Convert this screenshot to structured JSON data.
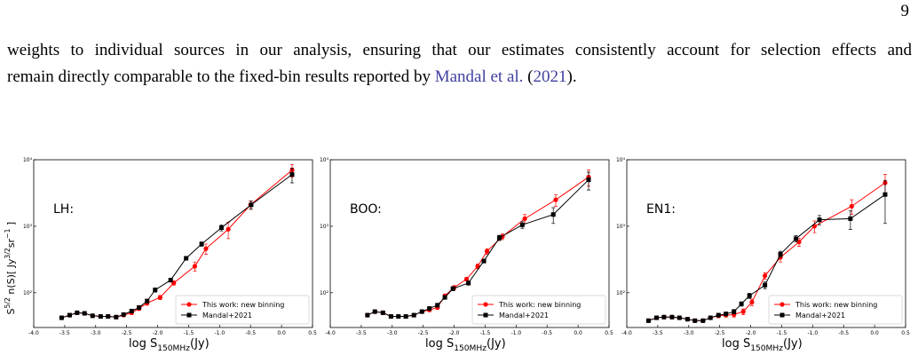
{
  "page_number": "9",
  "paragraph": {
    "line_1": "weights to individual sources in our analysis, ensuring that our estimates consistently account for selection effects and",
    "line_2": "remain directly comparable to the fixed-bin results reported by ",
    "cite_author": "Mandal et al.",
    "cite_open": " (",
    "cite_year": "2021",
    "cite_close": ")."
  },
  "chart_data": [
    {
      "type": "line",
      "panel_label": "LH:",
      "yscale": "log",
      "legend": "lower right",
      "grid": false,
      "xlim": [
        -4.0,
        0.5
      ],
      "xticks": [
        {
          "value": -4,
          "label": "-4.0"
        },
        -3.5,
        {
          "value": -3,
          "label": "-3.0"
        },
        -2.5,
        {
          "value": -2,
          "label": "-2.0"
        },
        -1.5,
        {
          "value": -1,
          "label": "-1.0"
        },
        -0.5,
        {
          "value": 0,
          "label": "0.0"
        },
        0.5
      ],
      "ylim": [
        30,
        10000
      ],
      "yticks": [
        {
          "value": 100,
          "label": "10²"
        },
        {
          "value": 1000,
          "label": "10³"
        },
        {
          "value": 10000,
          "label": "10⁴"
        }
      ],
      "xlabel": [
        {
          "text": "log S"
        },
        {
          "text": "150MHz",
          "sub": true
        },
        {
          "text": "(Jy)"
        }
      ],
      "ylabel": [
        {
          "text": "S"
        },
        {
          "text": "5/2",
          "sup": true
        },
        {
          "text": " n(S)[ Jy"
        },
        {
          "text": "3/2",
          "sup": true
        },
        {
          "text": "sr"
        },
        {
          "text": "−1",
          "sup": true
        },
        {
          "text": " ]"
        }
      ],
      "series": [
        {
          "name": "This work: new binning",
          "color": "#ff0000",
          "marker": "o",
          "x": [
            -3.55,
            -3.42,
            -3.3,
            -3.18,
            -3.05,
            -2.92,
            -2.8,
            -2.67,
            -2.55,
            -2.42,
            -2.3,
            -2.17,
            -1.96,
            -1.74,
            -1.4,
            -1.22,
            -0.86,
            -0.5,
            0.17
          ],
          "values": [
            42,
            46,
            50,
            49,
            45,
            44,
            44,
            43,
            46,
            50,
            58,
            70,
            85,
            140,
            250,
            460,
            900,
            2100,
            7000
          ],
          "errors": [
            2,
            2,
            2,
            2,
            2,
            2,
            2,
            2,
            2,
            3,
            4,
            5,
            6,
            10,
            40,
            80,
            250,
            300,
            1500
          ]
        },
        {
          "name": "Mandal+2021",
          "color": "#000000",
          "marker": "s",
          "x": [
            -3.55,
            -3.42,
            -3.3,
            -3.18,
            -3.05,
            -2.92,
            -2.8,
            -2.67,
            -2.55,
            -2.42,
            -2.3,
            -2.17,
            -2.04,
            -1.79,
            -1.54,
            -1.29,
            -0.97,
            -0.49,
            0.17
          ],
          "values": [
            42,
            46,
            50,
            49,
            45,
            44,
            44,
            43,
            47,
            53,
            60,
            75,
            110,
            155,
            330,
            540,
            950,
            2100,
            6000
          ],
          "errors": [
            2,
            2,
            2,
            2,
            2,
            2,
            2,
            2,
            2,
            3,
            4,
            5,
            8,
            10,
            20,
            40,
            100,
            300,
            1500
          ]
        }
      ]
    },
    {
      "type": "line",
      "panel_label": "BOO:",
      "yscale": "log",
      "legend": "lower right",
      "grid": false,
      "xlim": [
        -4.0,
        0.5
      ],
      "xticks": [
        {
          "value": -4,
          "label": "-4.0"
        },
        -3.5,
        {
          "value": -3,
          "label": "-3.0"
        },
        -2.5,
        {
          "value": -2,
          "label": "-2.0"
        },
        -1.5,
        {
          "value": -1,
          "label": "-1.0"
        },
        -0.5,
        {
          "value": 0,
          "label": "0.0"
        },
        0.5
      ],
      "ylim": [
        30,
        10000
      ],
      "yticks": [
        {
          "value": 100,
          "label": "10²"
        },
        {
          "value": 1000,
          "label": "10³"
        },
        {
          "value": 10000,
          "label": "10⁴"
        }
      ],
      "xlabel": [
        {
          "text": "log S"
        },
        {
          "text": "150MHz",
          "sub": true
        },
        {
          "text": "(Jy)"
        }
      ],
      "series": [
        {
          "name": "This work: new binning",
          "color": "#ff0000",
          "marker": "o",
          "x": [
            -3.4,
            -3.28,
            -3.15,
            -3.02,
            -2.9,
            -2.78,
            -2.65,
            -2.52,
            -2.4,
            -2.27,
            -2.15,
            -2.0,
            -1.8,
            -1.62,
            -1.47,
            -1.22,
            -0.86,
            -0.36,
            0.17
          ],
          "values": [
            46,
            52,
            50,
            44,
            44,
            44,
            46,
            52,
            55,
            60,
            90,
            120,
            160,
            250,
            420,
            700,
            1300,
            2500,
            5500
          ],
          "errors": [
            2,
            2,
            2,
            2,
            2,
            2,
            2,
            3,
            3,
            4,
            5,
            8,
            10,
            20,
            40,
            70,
            200,
            500,
            1500
          ]
        },
        {
          "name": "Mandal+2021",
          "color": "#000000",
          "marker": "s",
          "x": [
            -3.4,
            -3.28,
            -3.15,
            -3.02,
            -2.9,
            -2.78,
            -2.65,
            -2.52,
            -2.4,
            -2.27,
            -2.15,
            -2.02,
            -1.77,
            -1.52,
            -1.27,
            -0.9,
            -0.4,
            0.17
          ],
          "values": [
            46,
            52,
            50,
            44,
            44,
            44,
            46,
            52,
            58,
            65,
            85,
            115,
            140,
            300,
            670,
            1050,
            1500,
            5000
          ],
          "errors": [
            2,
            2,
            2,
            2,
            2,
            2,
            2,
            3,
            3,
            4,
            5,
            8,
            10,
            20,
            60,
            120,
            400,
            1500
          ]
        }
      ]
    },
    {
      "type": "line",
      "panel_label": "EN1:",
      "yscale": "log",
      "legend": "lower right",
      "grid": false,
      "xlim": [
        -4.0,
        0.5
      ],
      "xticks": [
        {
          "value": -4,
          "label": "-4.0"
        },
        -3.5,
        {
          "value": -3,
          "label": "-3.0"
        },
        -2.5,
        {
          "value": -2,
          "label": "-2.0"
        },
        -1.5,
        {
          "value": -1,
          "label": "-1.0"
        },
        -0.5,
        {
          "value": 0,
          "label": "0.0"
        },
        0.5
      ],
      "ylim": [
        30,
        10000
      ],
      "yticks": [
        {
          "value": 100,
          "label": "10²"
        },
        {
          "value": 1000,
          "label": "10³"
        },
        {
          "value": 10000,
          "label": "10⁴"
        }
      ],
      "xlabel": [
        {
          "text": "log S"
        },
        {
          "text": "150MHz",
          "sub": true
        },
        {
          "text": "(Jy)"
        }
      ],
      "series": [
        {
          "name": "This work: new binning",
          "color": "#ff0000",
          "marker": "o",
          "x": [
            -3.65,
            -3.52,
            -3.4,
            -3.27,
            -3.15,
            -3.02,
            -2.9,
            -2.77,
            -2.65,
            -2.52,
            -2.4,
            -2.27,
            -2.12,
            -1.98,
            -1.77,
            -1.52,
            -1.22,
            -0.97,
            -0.37,
            0.17
          ],
          "values": [
            38,
            42,
            43,
            43,
            42,
            40,
            38,
            38,
            42,
            45,
            46,
            47,
            52,
            72,
            180,
            340,
            580,
            1000,
            2000,
            4500
          ],
          "errors": [
            2,
            2,
            2,
            2,
            2,
            2,
            2,
            2,
            2,
            3,
            3,
            4,
            5,
            8,
            20,
            50,
            80,
            200,
            500,
            1500
          ]
        },
        {
          "name": "Mandal+2021",
          "color": "#000000",
          "marker": "s",
          "x": [
            -3.65,
            -3.52,
            -3.4,
            -3.27,
            -3.15,
            -3.02,
            -2.9,
            -2.77,
            -2.65,
            -2.52,
            -2.4,
            -2.27,
            -2.15,
            -2.02,
            -1.77,
            -1.52,
            -1.27,
            -0.89,
            -0.39,
            0.17
          ],
          "values": [
            38,
            42,
            43,
            43,
            42,
            40,
            38,
            38,
            42,
            46,
            48,
            52,
            68,
            90,
            130,
            380,
            650,
            1250,
            1300,
            3000
          ],
          "errors": [
            2,
            2,
            2,
            2,
            2,
            2,
            2,
            2,
            2,
            3,
            3,
            4,
            5,
            8,
            15,
            40,
            70,
            200,
            400,
            1900
          ]
        }
      ]
    }
  ]
}
